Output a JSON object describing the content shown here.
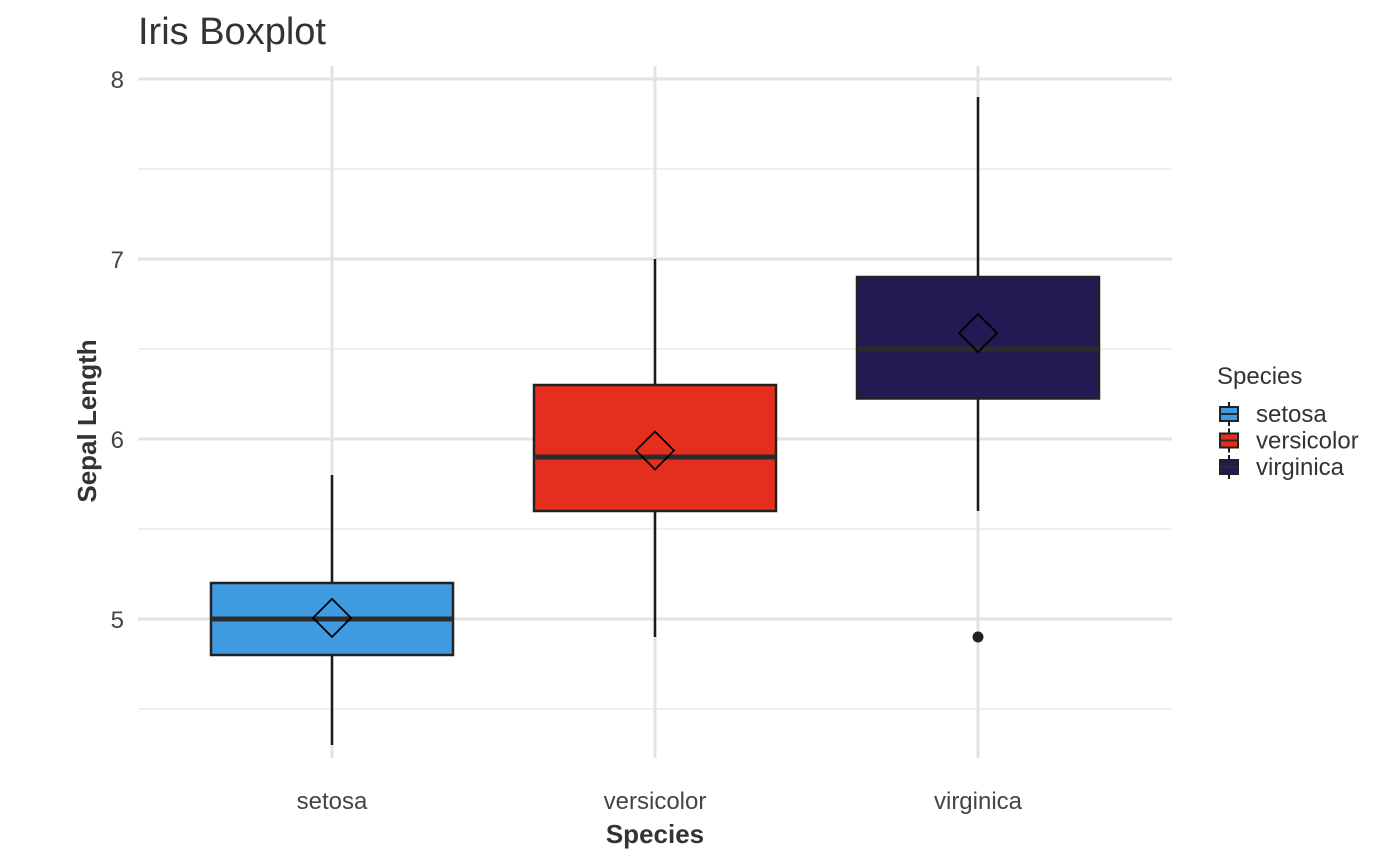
{
  "chart_data": {
    "type": "boxplot",
    "title": "Iris Boxplot",
    "xlabel": "Species",
    "ylabel": "Sepal Length",
    "categories": [
      "setosa",
      "versicolor",
      "virginica"
    ],
    "ylim": [
      4.2,
      8.08
    ],
    "yticks": [
      5,
      6,
      7,
      8
    ],
    "grid": true,
    "legend": {
      "title": "Species",
      "position": "right",
      "entries": [
        "setosa",
        "versicolor",
        "virginica"
      ]
    },
    "series": [
      {
        "name": "setosa",
        "color": "#3E9BE2",
        "min": 4.3,
        "q1": 4.8,
        "median": 5.0,
        "q3": 5.2,
        "max": 5.8,
        "mean": 5.006,
        "outliers": []
      },
      {
        "name": "versicolor",
        "color": "#E62E1E",
        "min": 4.9,
        "q1": 5.6,
        "median": 5.9,
        "q3": 6.3,
        "max": 7.0,
        "mean": 5.936,
        "outliers": []
      },
      {
        "name": "virginica",
        "color": "#221A52",
        "min": 5.6,
        "q1": 6.225,
        "median": 6.5,
        "q3": 6.9,
        "max": 7.9,
        "mean": 6.588,
        "outliers": [
          4.9
        ]
      }
    ]
  }
}
